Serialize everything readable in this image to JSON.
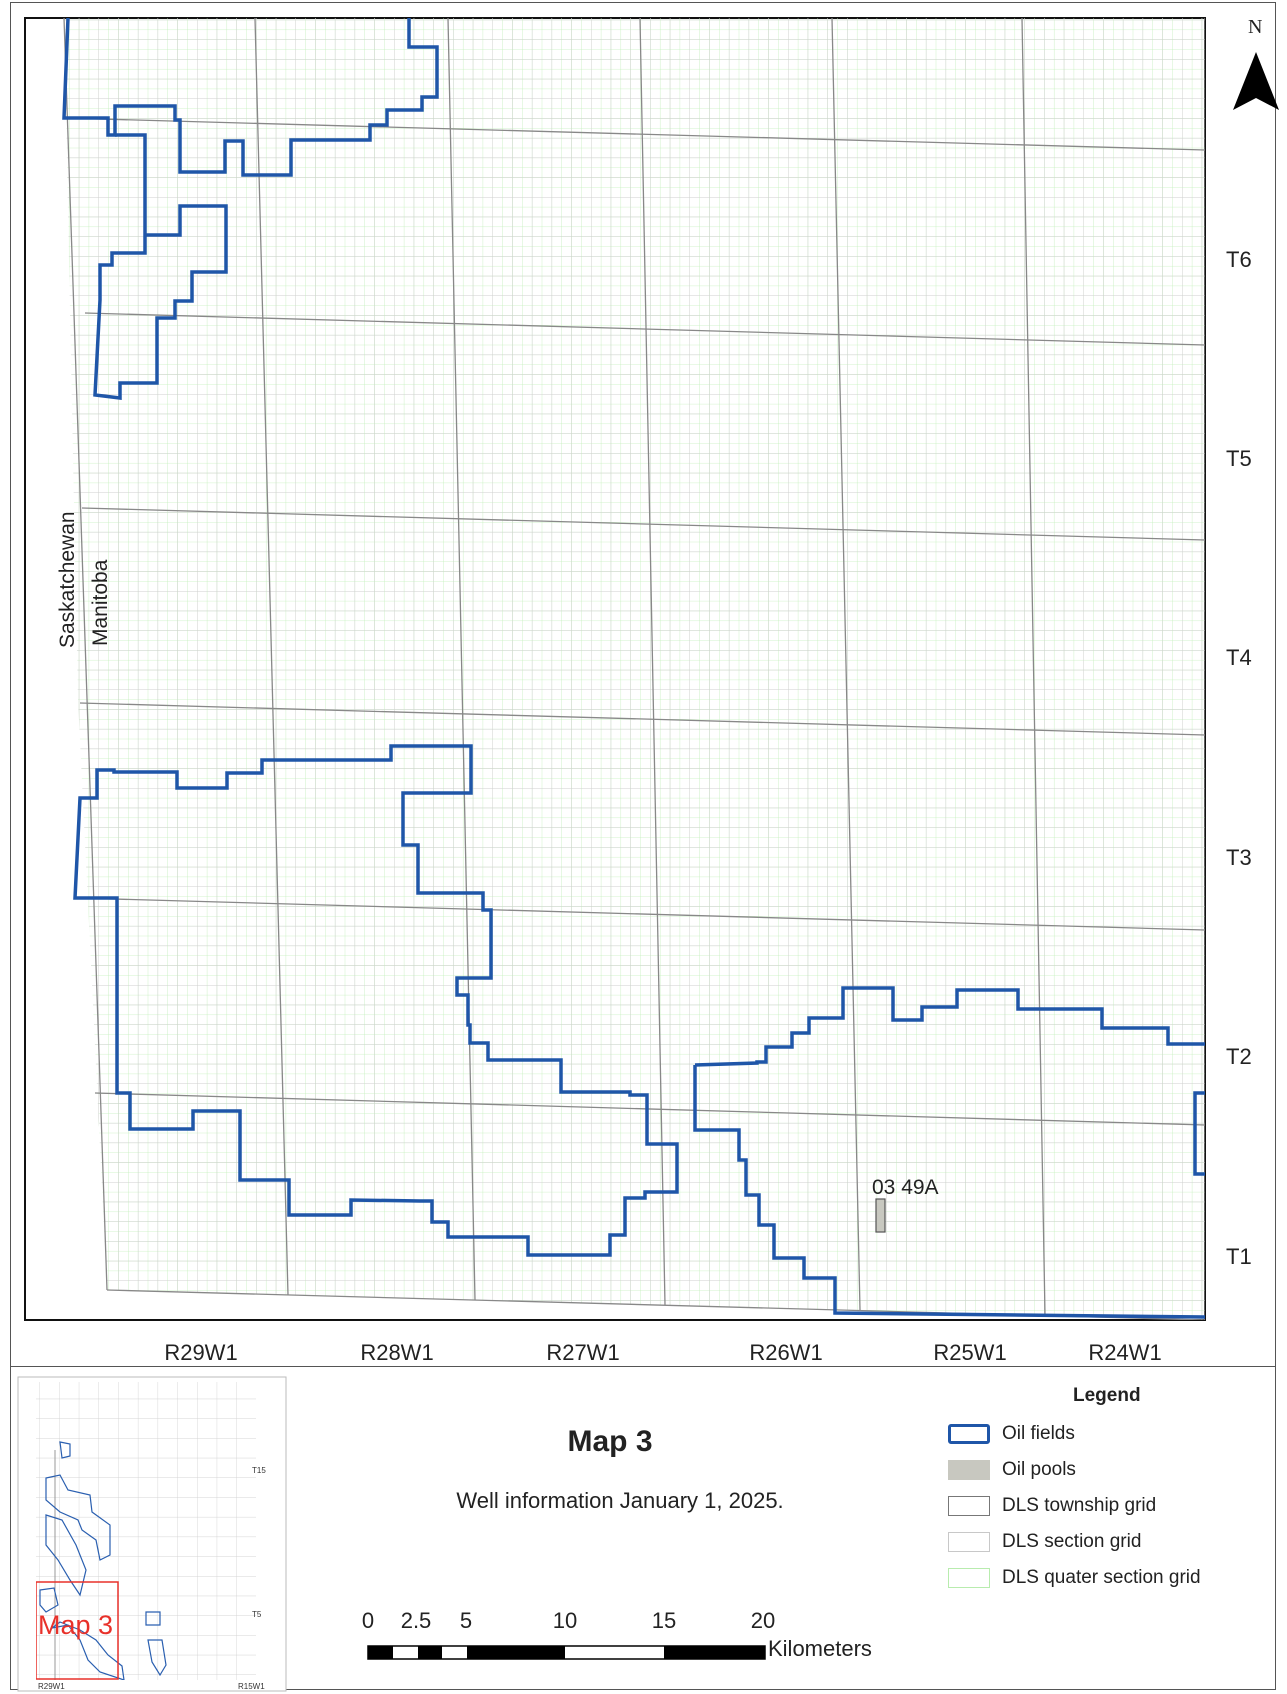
{
  "map": {
    "north_label": "N",
    "townships": [
      "T6",
      "T5",
      "T4",
      "T3",
      "T2",
      "T1"
    ],
    "ranges": [
      "R29W1",
      "R28W1",
      "R27W1",
      "R26W1",
      "R25W1",
      "R24W1"
    ],
    "provinces": {
      "west": "Saskatchewan",
      "east": "Manitoba"
    },
    "pool_label": "03 49A",
    "colors": {
      "oil_field": "#1f56a8",
      "oil_pool": "#c8c8c0",
      "township_grid": "#8a8a8a",
      "section_grid": "#c8c8c8",
      "quarter_grid": "#b8ecae",
      "inset_box": "#e8312a"
    }
  },
  "title": "Map 3",
  "subtitle": "Well information January 1, 2025.",
  "legend": {
    "title": "Legend",
    "items": [
      {
        "label": "Oil fields"
      },
      {
        "label": "Oil pools"
      },
      {
        "label": "DLS township grid"
      },
      {
        "label": "DLS section grid"
      },
      {
        "label": "DLS quater section grid"
      }
    ]
  },
  "scale_bar": {
    "ticks": [
      "0",
      "2.5",
      "5",
      "10",
      "15",
      "20"
    ],
    "unit": "Kilometers"
  },
  "inset": {
    "label": "Map 3",
    "township_labels": [
      "T15",
      "T5"
    ],
    "range_labels": [
      "R29W1",
      "R15W1"
    ]
  }
}
